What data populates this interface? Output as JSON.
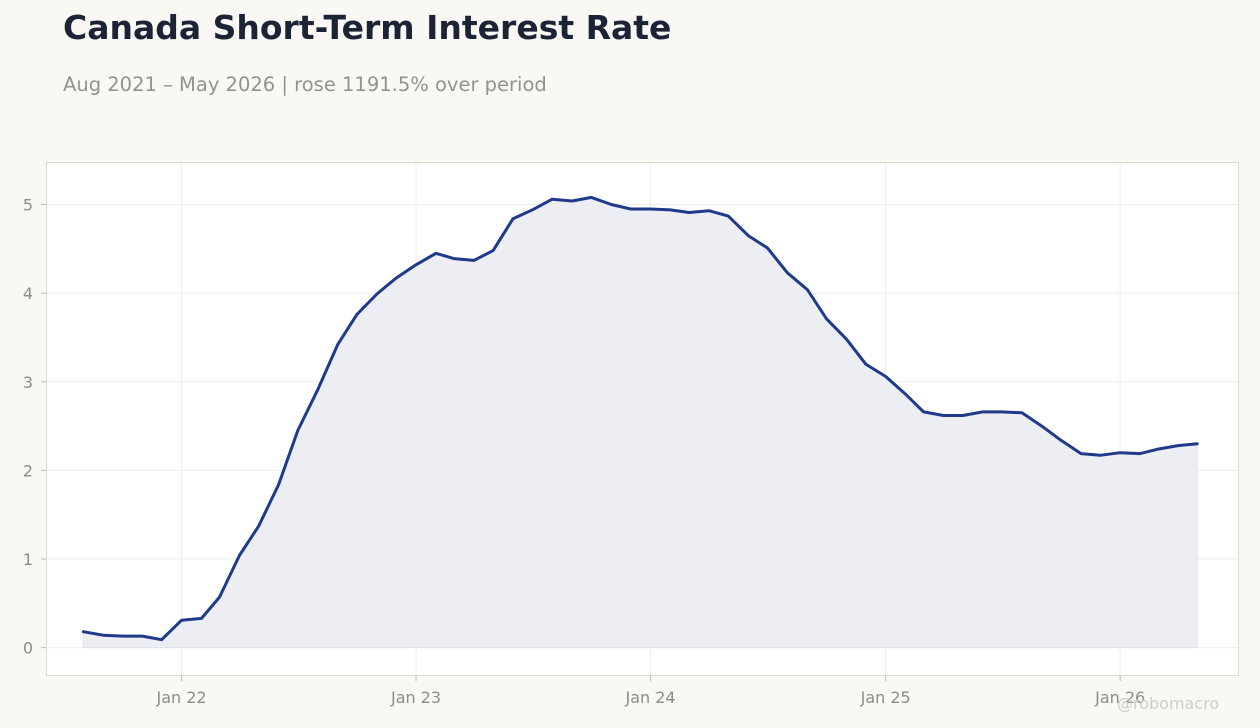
{
  "title": "Canada Short-Term Interest Rate",
  "subtitle": "Aug 2021 – May 2026 | rose 1191.5% over period",
  "watermark": "@robomacro",
  "colors": {
    "line": "#1f3a8a",
    "area_fill": "#eceef4",
    "plot_background": "#ffffff",
    "page_background": "#f9f8f5",
    "grid": "#eeeeee",
    "frame": "#dcd8d0"
  },
  "chart_data": {
    "type": "area",
    "title": "Canada Short-Term Interest Rate",
    "subtitle": "Aug 2021 – May 2026 | rose 1191.5% over period",
    "xlabel": "",
    "ylabel": "",
    "grid": true,
    "legend": "none",
    "ylim": [
      -0.32,
      5.48
    ],
    "xlim": [
      "2021-06-04",
      "2026-07-05"
    ],
    "yticks": [
      0,
      1,
      2,
      3,
      4,
      5
    ],
    "xticks": [
      {
        "date": "2022-01-01",
        "label": "Jan 22"
      },
      {
        "date": "2023-01-01",
        "label": "Jan 23"
      },
      {
        "date": "2024-01-01",
        "label": "Jan 24"
      },
      {
        "date": "2025-01-01",
        "label": "Jan 25"
      },
      {
        "date": "2026-01-01",
        "label": "Jan 26"
      }
    ],
    "series": [
      {
        "x": [
          "2021-08-01",
          "2021-09-01",
          "2021-10-01",
          "2021-11-01",
          "2021-12-01",
          "2022-01-01",
          "2022-02-01",
          "2022-03-01",
          "2022-04-01",
          "2022-05-01",
          "2022-06-01",
          "2022-07-01",
          "2022-08-01",
          "2022-09-01",
          "2022-10-01",
          "2022-11-01",
          "2022-12-01",
          "2023-01-01",
          "2023-02-01",
          "2023-03-01",
          "2023-04-01",
          "2023-05-01",
          "2023-06-01",
          "2023-07-01",
          "2023-08-01",
          "2023-09-01",
          "2023-10-01",
          "2023-11-01",
          "2023-12-01",
          "2024-01-01",
          "2024-02-01",
          "2024-03-01",
          "2024-04-01",
          "2024-05-01",
          "2024-06-01",
          "2024-07-01",
          "2024-08-01",
          "2024-09-01",
          "2024-10-01",
          "2024-11-01",
          "2024-12-01",
          "2025-01-01",
          "2025-02-01",
          "2025-03-01",
          "2025-04-01",
          "2025-05-01",
          "2025-06-01",
          "2025-07-01",
          "2025-08-01",
          "2025-09-01",
          "2025-10-01",
          "2025-11-01",
          "2025-12-01",
          "2026-01-01",
          "2026-02-01",
          "2026-03-01",
          "2026-04-01",
          "2026-05-01"
        ],
        "values": [
          0.18,
          0.14,
          0.13,
          0.13,
          0.09,
          0.31,
          0.33,
          0.57,
          1.04,
          1.37,
          1.84,
          2.45,
          2.91,
          3.42,
          3.76,
          3.99,
          4.17,
          4.32,
          4.45,
          4.39,
          4.37,
          4.48,
          4.84,
          4.94,
          5.06,
          5.04,
          5.08,
          5.0,
          4.95,
          4.95,
          4.94,
          4.91,
          4.93,
          4.87,
          4.65,
          4.51,
          4.23,
          4.04,
          3.71,
          3.48,
          3.2,
          3.06,
          2.86,
          2.66,
          2.62,
          2.62,
          2.66,
          2.66,
          2.65,
          2.5,
          2.34,
          2.19,
          2.17,
          2.2,
          2.19,
          2.24,
          2.28,
          2.3
        ]
      }
    ]
  }
}
